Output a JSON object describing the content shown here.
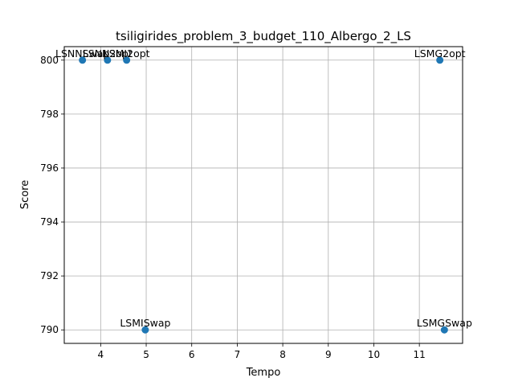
{
  "chart_data": {
    "type": "scatter",
    "title": "tsiligirides_problem_3_budget_110_Albergo_2_LS",
    "xlabel": "Tempo",
    "ylabel": "Score",
    "xlim": [
      3.2,
      11.95
    ],
    "ylim": [
      789.5,
      800.5
    ],
    "xticks": [
      4,
      5,
      6,
      7,
      8,
      9,
      10,
      11
    ],
    "yticks": [
      790,
      792,
      794,
      796,
      798,
      800
    ],
    "grid": true,
    "marker_color": "#1f77b4",
    "points": [
      {
        "label": "LSNNSwap",
        "x": 3.6,
        "y": 800
      },
      {
        "label": "LSNN2opt",
        "x": 4.15,
        "y": 800
      },
      {
        "label": "LSMI2opt",
        "x": 4.57,
        "y": 800
      },
      {
        "label": "LSMISwap",
        "x": 4.98,
        "y": 790
      },
      {
        "label": "LSMG2opt",
        "x": 11.45,
        "y": 800
      },
      {
        "label": "LSMGSwap",
        "x": 11.55,
        "y": 790
      }
    ]
  }
}
